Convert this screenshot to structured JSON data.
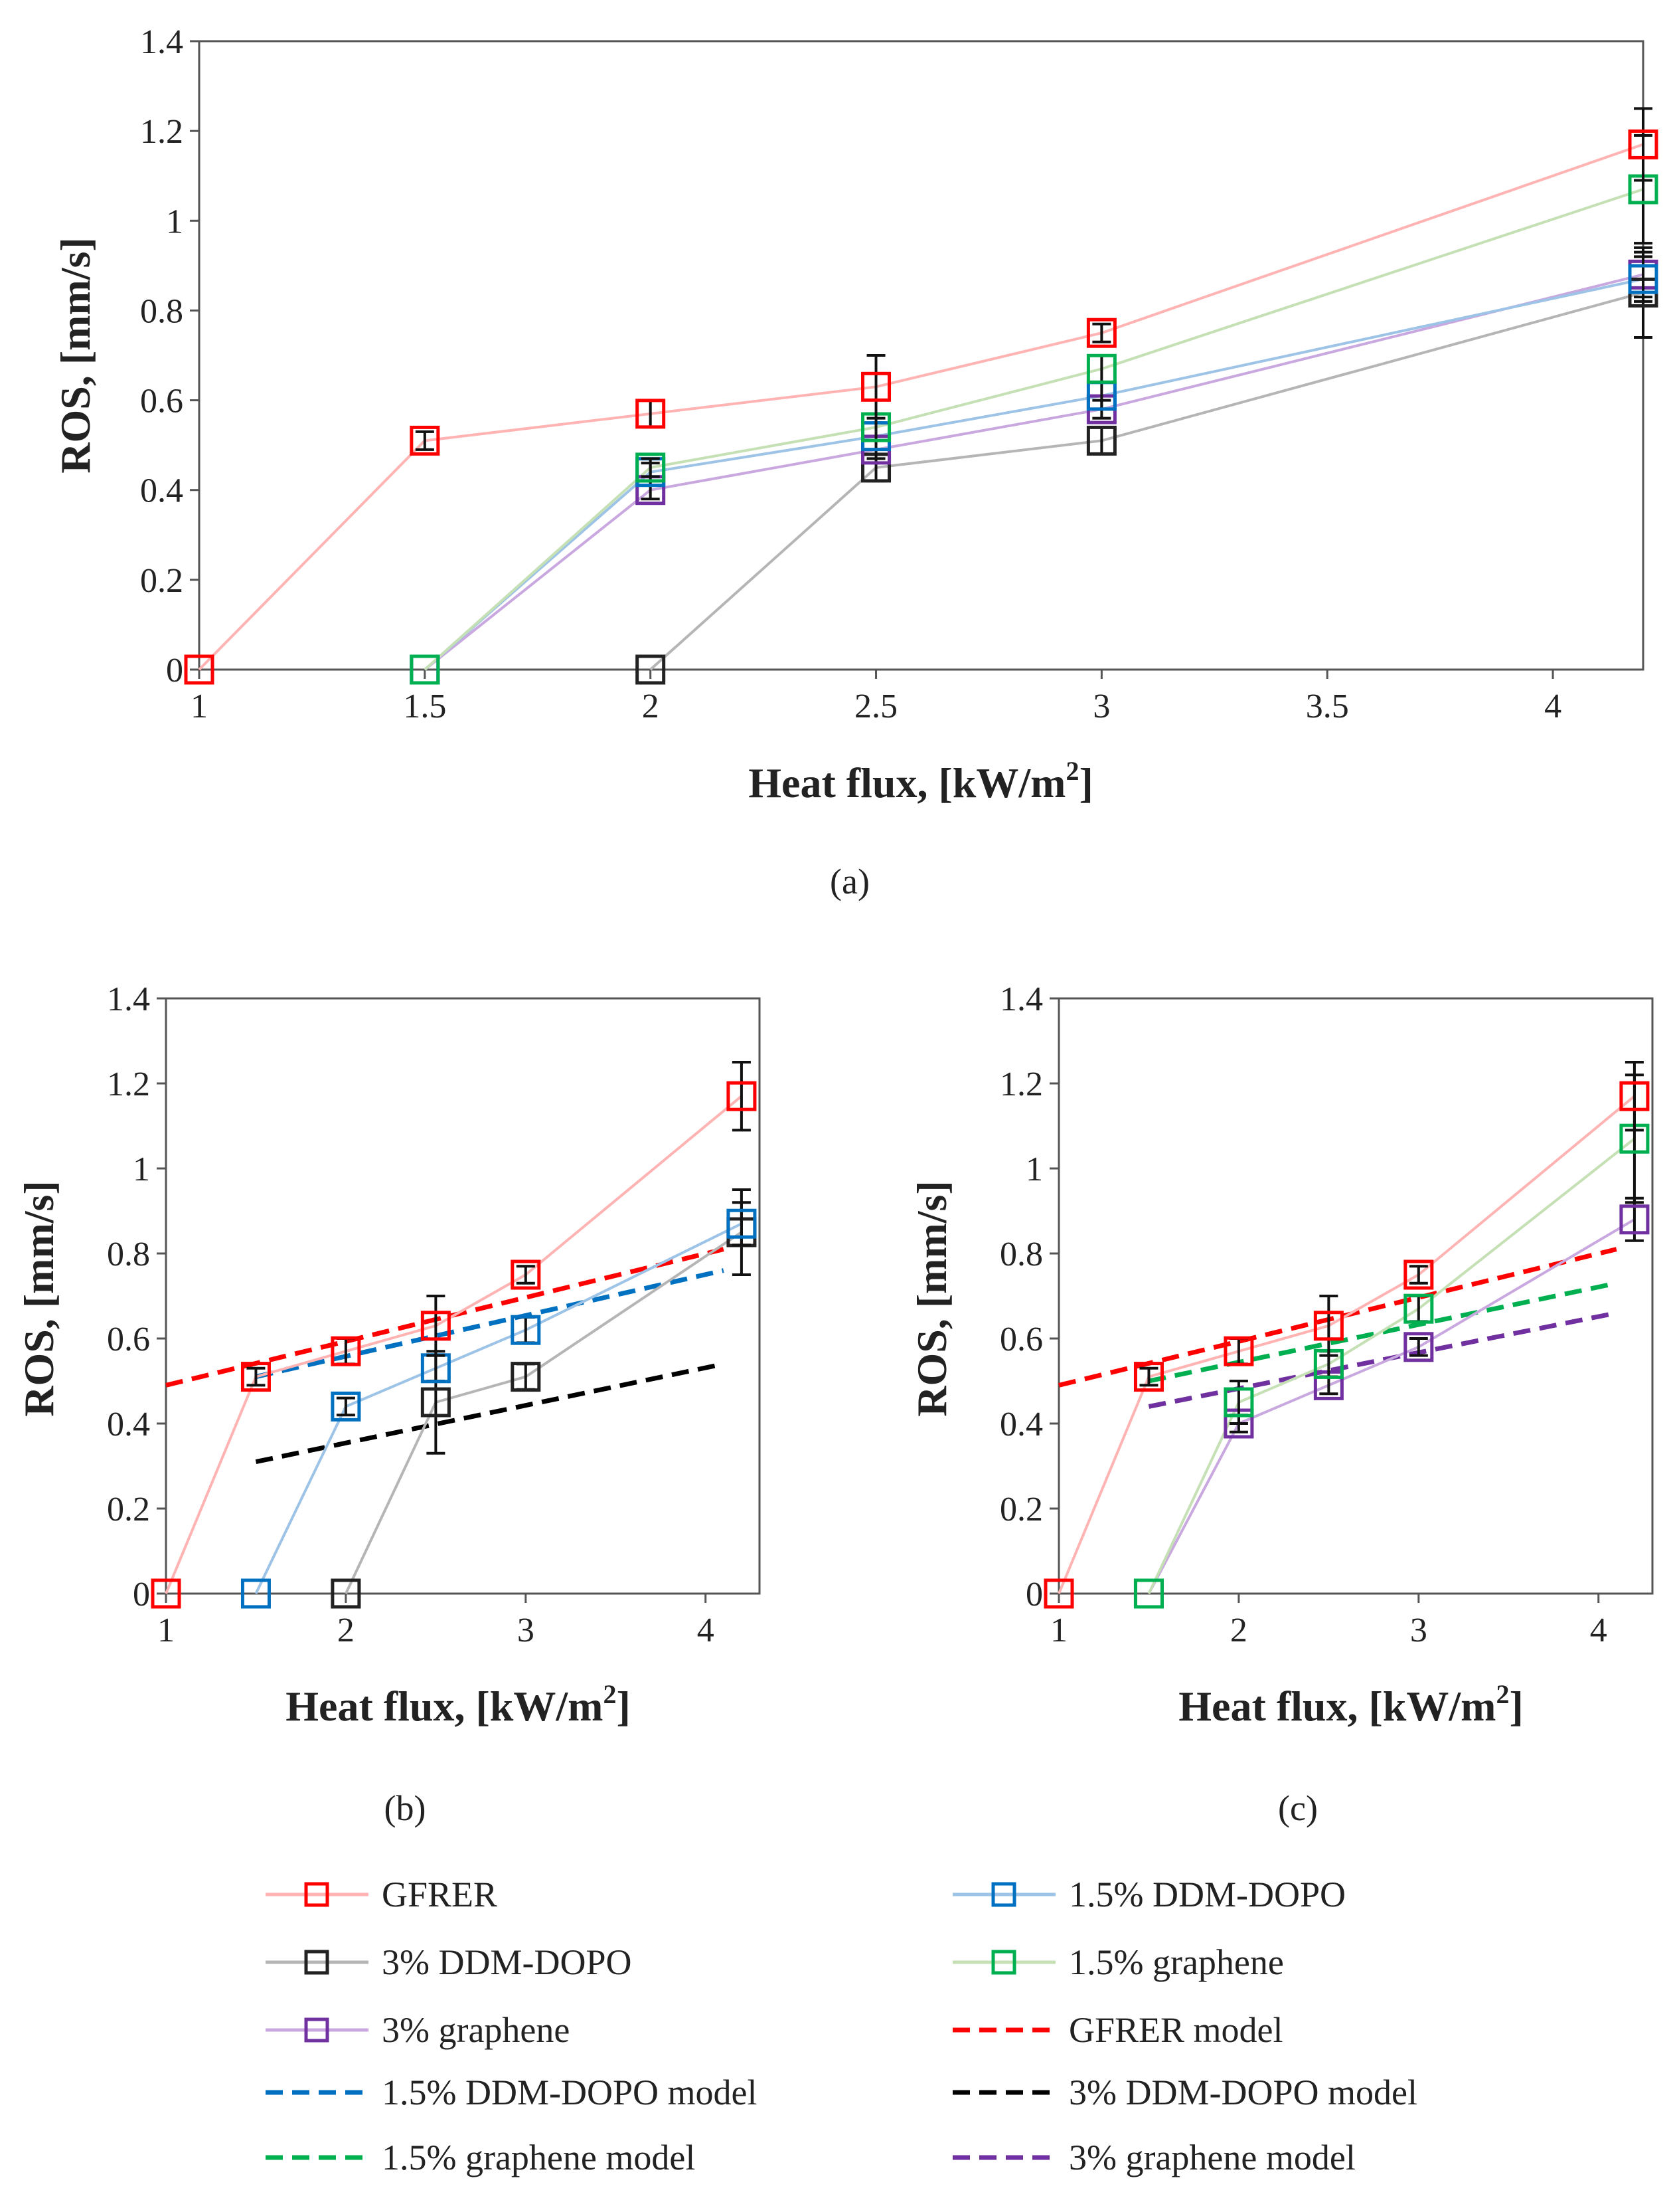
{
  "chart_data": [
    {
      "id": "a",
      "type": "line",
      "caption": "(a)",
      "xlabel": "Heat flux, [kW/m²]",
      "xlabel_main": "Heat flux, [kW/m",
      "xlabel_sup": "2",
      "xlabel_end": "]",
      "ylabel": "ROS, [mm/s]",
      "xlim": [
        1,
        4.2
      ],
      "ylim": [
        0,
        1.4
      ],
      "xticks": [
        "1",
        "1.5",
        "2",
        "2.5",
        "3",
        "3.5",
        "4"
      ],
      "xtick_values": [
        1,
        1.5,
        2,
        2.5,
        3,
        3.5,
        4
      ],
      "yticks": [
        "0",
        "0.2",
        "0.4",
        "0.6",
        "0.8",
        "1",
        "1.2",
        "1.4"
      ],
      "ytick_values": [
        0,
        0.2,
        0.4,
        0.6,
        0.8,
        1,
        1.2,
        1.4
      ],
      "series": [
        {
          "name": "3% DDM-DOPO",
          "x": [
            2,
            2.5,
            3,
            4.2
          ],
          "y": [
            0,
            0.45,
            0.51,
            0.84
          ],
          "err": [
            0,
            0.03,
            0.03,
            0.1
          ],
          "color": "#222222",
          "line": "#b5b5b5"
        },
        {
          "name": "3% graphene",
          "x": [
            1.5,
            2,
            2.5,
            3,
            4.2
          ],
          "y": [
            0,
            0.4,
            0.49,
            0.58,
            0.88
          ],
          "err": [
            0,
            0.02,
            0.02,
            0.02,
            0.05
          ],
          "color": "#7030a0",
          "line": "#c9a8e0"
        },
        {
          "name": "1.5% DDM-DOPO",
          "x": [
            1.5,
            2,
            2.5,
            3,
            4.2
          ],
          "y": [
            0,
            0.44,
            0.52,
            0.61,
            0.87
          ],
          "err": [
            0,
            0.02,
            0.03,
            0.03,
            0.05
          ],
          "color": "#0070c0",
          "line": "#9dc3e6"
        },
        {
          "name": "1.5% graphene",
          "x": [
            1.5,
            2,
            2.5,
            3,
            4.2
          ],
          "y": [
            0,
            0.45,
            0.54,
            0.67,
            1.07
          ],
          "err": [
            0,
            0.02,
            0.03,
            0.03,
            0.12
          ],
          "color": "#00b050",
          "line": "#c5e0b4"
        },
        {
          "name": "GFRER",
          "x": [
            1,
            1.5,
            2,
            2.5,
            3,
            4.2
          ],
          "y": [
            0,
            0.51,
            0.57,
            0.63,
            0.75,
            1.17
          ],
          "err": [
            0,
            0.02,
            0.03,
            0.07,
            0.02,
            0.08
          ],
          "color": "#ff0000",
          "line": "#ffb3b3"
        }
      ]
    },
    {
      "id": "b",
      "type": "line",
      "caption": "(b)",
      "xlabel": "Heat flux, [kW/m²]",
      "xlabel_main": "Heat flux, [kW/m",
      "xlabel_sup": "2",
      "xlabel_end": "]",
      "ylabel": "ROS, [mm/s]",
      "xlim": [
        1,
        4.3
      ],
      "ylim": [
        0,
        1.4
      ],
      "xticks": [
        "1",
        "2",
        "3",
        "4"
      ],
      "xtick_values": [
        1,
        2,
        3,
        4
      ],
      "yticks": [
        "0",
        "0.2",
        "0.4",
        "0.6",
        "0.8",
        "1",
        "1.2",
        "1.4"
      ],
      "ytick_values": [
        0,
        0.2,
        0.4,
        0.6,
        0.8,
        1,
        1.2,
        1.4
      ],
      "series": [
        {
          "name": "3% DDM-DOPO",
          "x": [
            2,
            2.5,
            3,
            4.2
          ],
          "y": [
            0,
            0.45,
            0.51,
            0.85
          ],
          "err": [
            0,
            0.12,
            0.03,
            0.1
          ],
          "color": "#222222",
          "line": "#b5b5b5"
        },
        {
          "name": "1.5% DDM-DOPO",
          "x": [
            1.5,
            2,
            2.5,
            3,
            4.2
          ],
          "y": [
            0,
            0.44,
            0.53,
            0.62,
            0.87
          ],
          "err": [
            0,
            0.02,
            0.03,
            0.03,
            0.05
          ],
          "color": "#0070c0",
          "line": "#9dc3e6"
        },
        {
          "name": "GFRER",
          "x": [
            1,
            1.5,
            2,
            2.5,
            3,
            4.2
          ],
          "y": [
            0,
            0.51,
            0.57,
            0.63,
            0.75,
            1.17
          ],
          "err": [
            0,
            0.02,
            0.03,
            0.07,
            0.02,
            0.08
          ],
          "color": "#ff0000",
          "line": "#ffb3b3"
        }
      ],
      "models": [
        {
          "name": "GFRER model",
          "x": [
            1,
            4.1
          ],
          "y": [
            0.49,
            0.81
          ],
          "color": "#ff0000"
        },
        {
          "name": "1.5% DDM-DOPO model",
          "x": [
            1.5,
            4.1
          ],
          "y": [
            0.51,
            0.76
          ],
          "color": "#0070c0"
        },
        {
          "name": "3% DDM-DOPO model",
          "x": [
            1.5,
            4.1
          ],
          "y": [
            0.31,
            0.54
          ],
          "color": "#000000"
        }
      ]
    },
    {
      "id": "c",
      "type": "line",
      "caption": "(c)",
      "xlabel": "Heat flux, [kW/m²]",
      "xlabel_main": "Heat flux, [kW/m",
      "xlabel_sup": "2",
      "xlabel_end": "]",
      "ylabel": "ROS, [mm/s]",
      "xlim": [
        1,
        4.3
      ],
      "ylim": [
        0,
        1.4
      ],
      "xticks": [
        "1",
        "2",
        "3",
        "4"
      ],
      "xtick_values": [
        1,
        2,
        3,
        4
      ],
      "yticks": [
        "0",
        "0.2",
        "0.4",
        "0.6",
        "0.8",
        "1",
        "1.2",
        "1.4"
      ],
      "ytick_values": [
        0,
        0.2,
        0.4,
        0.6,
        0.8,
        1,
        1.2,
        1.4
      ],
      "series": [
        {
          "name": "3% graphene",
          "x": [
            1.5,
            2,
            2.5,
            3,
            4.2
          ],
          "y": [
            0,
            0.4,
            0.49,
            0.58,
            0.88
          ],
          "err": [
            0,
            0.02,
            0.02,
            0.02,
            0.05
          ],
          "color": "#7030a0",
          "line": "#c9a8e0"
        },
        {
          "name": "1.5% graphene",
          "x": [
            1.5,
            2,
            2.5,
            3,
            4.2
          ],
          "y": [
            0,
            0.45,
            0.54,
            0.67,
            1.07
          ],
          "err": [
            0,
            0.05,
            0.03,
            0.03,
            0.15
          ],
          "color": "#00b050",
          "line": "#c5e0b4"
        },
        {
          "name": "GFRER",
          "x": [
            1,
            1.5,
            2,
            2.5,
            3,
            4.2
          ],
          "y": [
            0,
            0.51,
            0.57,
            0.63,
            0.75,
            1.17
          ],
          "err": [
            0,
            0.02,
            0.03,
            0.07,
            0.02,
            0.08
          ],
          "color": "#ff0000",
          "line": "#ffb3b3"
        }
      ],
      "models": [
        {
          "name": "GFRER model",
          "x": [
            1,
            4.1
          ],
          "y": [
            0.49,
            0.81
          ],
          "color": "#ff0000"
        },
        {
          "name": "1.5% graphene model",
          "x": [
            1.5,
            4.1
          ],
          "y": [
            0.5,
            0.73
          ],
          "color": "#00b050"
        },
        {
          "name": "3% graphene model",
          "x": [
            1.5,
            4.1
          ],
          "y": [
            0.44,
            0.66
          ],
          "color": "#7030a0"
        }
      ]
    }
  ],
  "legend": {
    "items": [
      {
        "label": "GFRER",
        "kind": "marker",
        "color": "#ff0000",
        "line": "#ffb3b3"
      },
      {
        "label": "1.5% DDM-DOPO",
        "kind": "marker",
        "color": "#0070c0",
        "line": "#9dc3e6"
      },
      {
        "label": "3% DDM-DOPO",
        "kind": "marker",
        "color": "#222222",
        "line": "#b5b5b5"
      },
      {
        "label": "1.5% graphene",
        "kind": "marker",
        "color": "#00b050",
        "line": "#c5e0b4"
      },
      {
        "label": "3% graphene",
        "kind": "marker",
        "color": "#7030a0",
        "line": "#c9a8e0"
      },
      {
        "label": "GFRER model",
        "kind": "dash",
        "color": "#ff0000"
      },
      {
        "label": "1.5% DDM-DOPO model",
        "kind": "dash",
        "color": "#0070c0"
      },
      {
        "label": "3% DDM-DOPO model",
        "kind": "dash",
        "color": "#000000"
      },
      {
        "label": "1.5% graphene model",
        "kind": "dash",
        "color": "#00b050"
      },
      {
        "label": "3% graphene model",
        "kind": "dash",
        "color": "#7030a0"
      }
    ]
  }
}
